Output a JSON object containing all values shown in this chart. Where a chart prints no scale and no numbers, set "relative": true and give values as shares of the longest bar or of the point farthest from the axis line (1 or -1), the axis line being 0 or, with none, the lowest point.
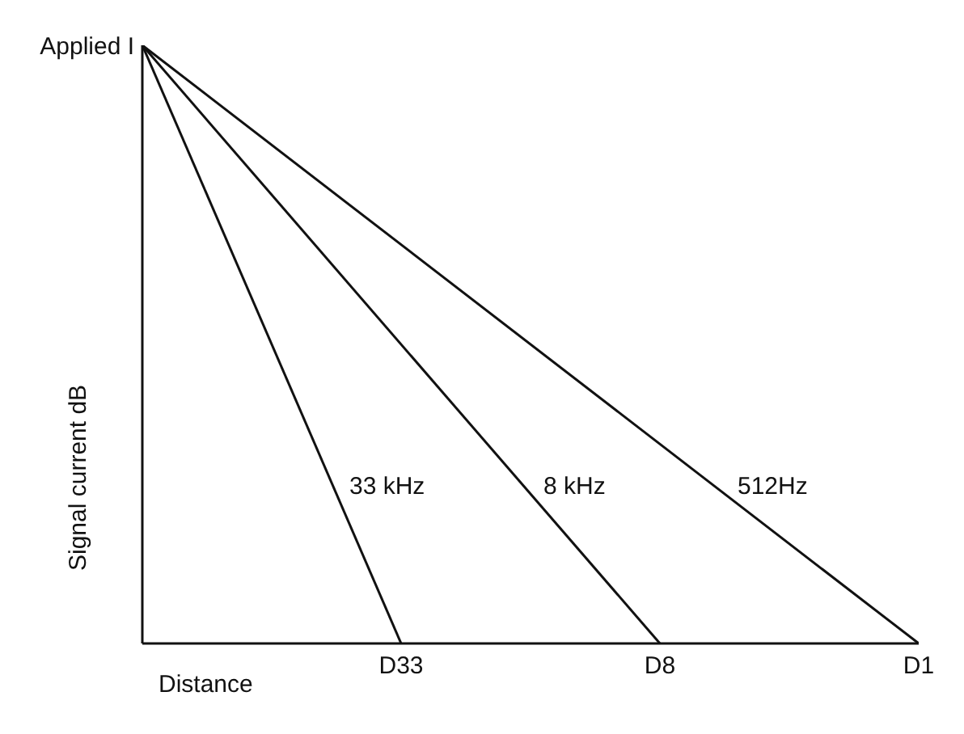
{
  "chart_data": {
    "type": "line",
    "relative": true,
    "xlabel": "Distance",
    "ylabel": "Signal current dB",
    "annotations": [
      "Applied I"
    ],
    "categories": [
      null,
      "D33",
      "D8",
      "D1"
    ],
    "marker": "none",
    "line_style": "solid",
    "grid": false,
    "legend": false,
    "series": [
      {
        "name": "33 kHz",
        "color": "#111111",
        "values": [
          1,
          0,
          null,
          null
        ]
      },
      {
        "name": "8 kHz",
        "color": "#111111",
        "values": [
          1,
          null,
          0,
          null
        ]
      },
      {
        "name": "512Hz",
        "color": "#111111",
        "values": [
          1,
          null,
          null,
          0
        ]
      }
    ]
  }
}
